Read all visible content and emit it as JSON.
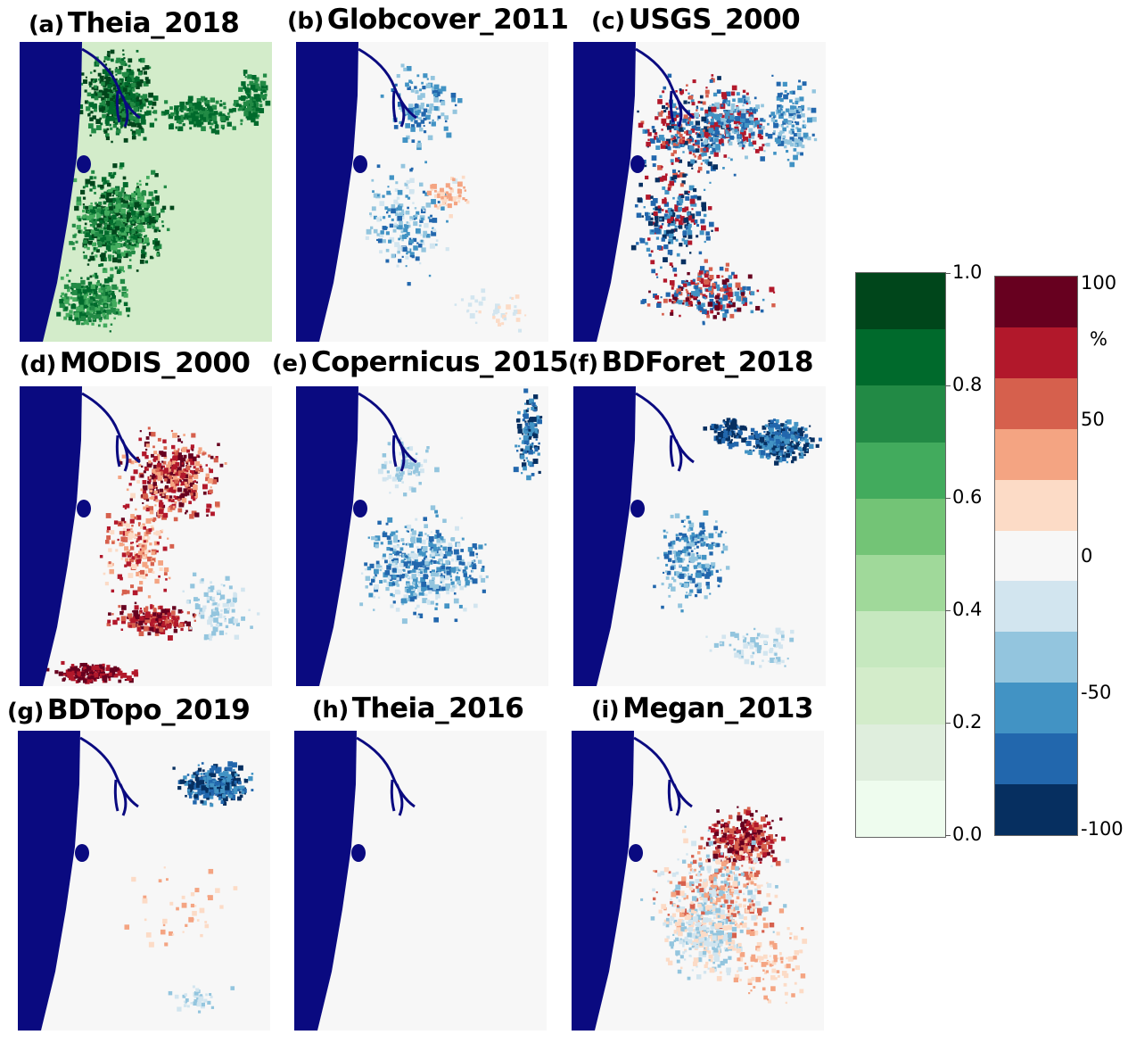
{
  "panels": [
    {
      "label": "(a)",
      "name": "Theia_2018",
      "scale": "fraction"
    },
    {
      "label": "(b)",
      "name": "Globcover_2011",
      "scale": "percent"
    },
    {
      "label": "(c)",
      "name": "USGS_2000",
      "scale": "percent"
    },
    {
      "label": "(d)",
      "name": "MODIS_2000",
      "scale": "percent"
    },
    {
      "label": "(e)",
      "name": "Copernicus_2015",
      "scale": "percent"
    },
    {
      "label": "(f)",
      "name": "BDForet_2018",
      "scale": "percent"
    },
    {
      "label": "(g)",
      "name": "BDTopo_2019",
      "scale": "percent"
    },
    {
      "label": "(h)",
      "name": "Theia_2016",
      "scale": "percent"
    },
    {
      "label": "(i)",
      "name": "Megan_2013",
      "scale": "percent"
    }
  ],
  "colors": {
    "ocean": "#0a0a80",
    "green_scale": [
      "#eefcee",
      "#dfeedd",
      "#d3ecca",
      "#c6e8bf",
      "#a0d99a",
      "#73c476",
      "#42ab5d",
      "#228a45",
      "#006a2c",
      "#00461b"
    ],
    "diverging_scale": [
      "#062f60",
      "#2267ad",
      "#4293c4",
      "#93c5de",
      "#d2e5ef",
      "#f7f7f7",
      "#fcdbc6",
      "#f4a482",
      "#d6604d",
      "#b2182b",
      "#67001f"
    ]
  },
  "colorbar_fraction": {
    "ticks": [
      "0.0",
      "0.2",
      "0.4",
      "0.6",
      "0.8",
      "1.0"
    ],
    "range": [
      0,
      1
    ]
  },
  "colorbar_percent": {
    "unit": "%",
    "ticks": [
      "-100",
      "-50",
      "0",
      "50",
      "100"
    ],
    "range": [
      -100,
      100
    ]
  }
}
